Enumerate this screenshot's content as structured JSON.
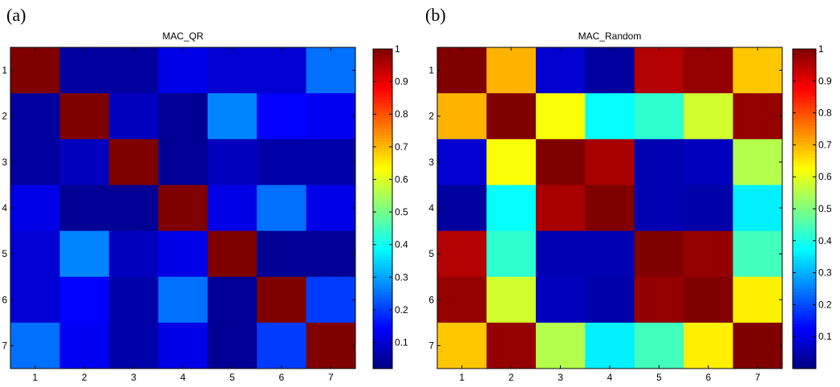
{
  "panels": [
    {
      "letter": "(a)"
    },
    {
      "letter": "(b)"
    }
  ],
  "colormap": "jet",
  "chart_data": [
    {
      "type": "heatmap",
      "title": "MAC_QR",
      "x_ticks": [
        "1",
        "2",
        "3",
        "4",
        "5",
        "6",
        "7"
      ],
      "y_ticks": [
        "1",
        "2",
        "3",
        "4",
        "5",
        "6",
        "7"
      ],
      "colorbar": {
        "range": [
          0.02,
          1.0
        ],
        "ticks": [
          0.1,
          0.2,
          0.3,
          0.4,
          0.5,
          0.6,
          0.7,
          0.8,
          0.9,
          1
        ],
        "tick_labels": [
          "0.1",
          "0.2",
          "0.3",
          "0.4",
          "0.5",
          "0.6",
          "0.7",
          "0.8",
          "0.9",
          "1"
        ]
      },
      "values": [
        [
          1.0,
          0.05,
          0.05,
          0.12,
          0.1,
          0.1,
          0.25
        ],
        [
          0.05,
          1.0,
          0.08,
          0.04,
          0.27,
          0.14,
          0.13
        ],
        [
          0.05,
          0.08,
          1.0,
          0.04,
          0.08,
          0.06,
          0.06
        ],
        [
          0.12,
          0.04,
          0.04,
          1.0,
          0.12,
          0.25,
          0.12
        ],
        [
          0.1,
          0.27,
          0.08,
          0.12,
          1.0,
          0.04,
          0.04
        ],
        [
          0.1,
          0.14,
          0.06,
          0.25,
          0.04,
          1.0,
          0.2
        ],
        [
          0.25,
          0.13,
          0.06,
          0.12,
          0.04,
          0.2,
          1.0
        ]
      ]
    },
    {
      "type": "heatmap",
      "title": "MAC_Random",
      "x_ticks": [
        "1",
        "2",
        "3",
        "4",
        "5",
        "6",
        "7"
      ],
      "y_ticks": [
        "1",
        "2",
        "3",
        "4",
        "5",
        "6",
        "7"
      ],
      "colorbar": {
        "range": [
          0.0,
          1.0
        ],
        "ticks": [
          0.1,
          0.2,
          0.3,
          0.4,
          0.5,
          0.6,
          0.7,
          0.8,
          0.9,
          1
        ],
        "tick_labels": [
          "0.1",
          "0.2",
          "0.3",
          "0.4",
          "0.5",
          "0.6",
          "0.7",
          "0.8",
          "0.9",
          "1"
        ]
      },
      "values": [
        [
          1.0,
          0.7,
          0.08,
          0.03,
          0.95,
          0.98,
          0.68
        ],
        [
          0.7,
          1.0,
          0.62,
          0.38,
          0.42,
          0.58,
          0.98
        ],
        [
          0.08,
          0.62,
          1.0,
          0.96,
          0.05,
          0.06,
          0.55
        ],
        [
          0.03,
          0.38,
          0.96,
          1.0,
          0.05,
          0.04,
          0.36
        ],
        [
          0.95,
          0.42,
          0.05,
          0.05,
          1.0,
          0.98,
          0.44
        ],
        [
          0.98,
          0.58,
          0.06,
          0.04,
          0.98,
          1.0,
          0.64
        ],
        [
          0.68,
          0.98,
          0.55,
          0.36,
          0.44,
          0.64,
          1.0
        ]
      ]
    }
  ]
}
